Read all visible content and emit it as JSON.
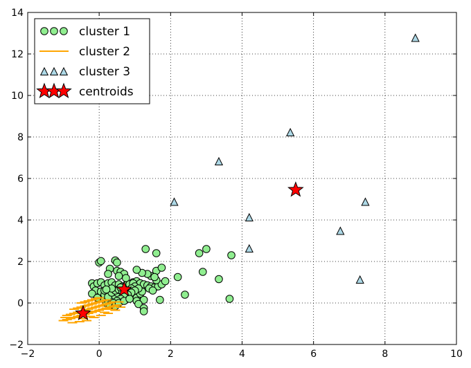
{
  "chart_data": {
    "type": "scatter",
    "title": "",
    "xlabel": "",
    "ylabel": "",
    "xlim": [
      -2,
      10
    ],
    "ylim": [
      -2,
      14
    ],
    "xticks": [
      "−2",
      "0",
      "2",
      "4",
      "6",
      "8",
      "10"
    ],
    "yticks": [
      "−2",
      "0",
      "2",
      "4",
      "6",
      "8",
      "10",
      "12",
      "14"
    ],
    "grid": true,
    "legend_position": "top-left",
    "series": [
      {
        "name": "cluster 1",
        "marker": "circle",
        "color": "#90ee90",
        "edge": "#000000",
        "points": [
          [
            0.0,
            1.95
          ],
          [
            0.05,
            2.02
          ],
          [
            0.45,
            2.05
          ],
          [
            0.5,
            1.95
          ],
          [
            0.3,
            1.65
          ],
          [
            0.5,
            1.55
          ],
          [
            0.6,
            1.5
          ],
          [
            0.7,
            1.4
          ],
          [
            0.25,
            1.4
          ],
          [
            0.55,
            1.3
          ],
          [
            0.75,
            1.2
          ],
          [
            0.95,
            1.0
          ],
          [
            1.05,
            1.05
          ],
          [
            1.15,
            0.95
          ],
          [
            1.25,
            0.9
          ],
          [
            1.35,
            0.85
          ],
          [
            1.45,
            0.8
          ],
          [
            1.55,
            0.75
          ],
          [
            1.65,
            0.8
          ],
          [
            1.75,
            0.9
          ],
          [
            1.85,
            1.05
          ],
          [
            1.6,
            1.1
          ],
          [
            1.45,
            1.3
          ],
          [
            1.35,
            1.4
          ],
          [
            1.2,
            1.45
          ],
          [
            1.05,
            1.6
          ],
          [
            1.6,
            1.55
          ],
          [
            1.75,
            1.7
          ],
          [
            1.55,
            1.25
          ],
          [
            1.3,
            2.6
          ],
          [
            1.6,
            2.4
          ],
          [
            2.2,
            1.25
          ],
          [
            2.4,
            0.4
          ],
          [
            1.7,
            0.15
          ],
          [
            2.8,
            2.4
          ],
          [
            3.0,
            2.6
          ],
          [
            3.7,
            2.3
          ],
          [
            2.9,
            1.5
          ],
          [
            3.35,
            1.15
          ],
          [
            3.65,
            0.2
          ],
          [
            -0.2,
            0.95
          ],
          [
            -0.15,
            0.8
          ],
          [
            -0.05,
            0.95
          ],
          [
            0.05,
            1.0
          ],
          [
            0.15,
            0.85
          ],
          [
            0.25,
            0.95
          ],
          [
            0.35,
            1.0
          ],
          [
            0.45,
            0.85
          ],
          [
            0.55,
            0.9
          ],
          [
            0.65,
            0.8
          ],
          [
            0.75,
            0.85
          ],
          [
            0.85,
            0.9
          ],
          [
            0.95,
            0.95
          ],
          [
            1.0,
            0.8
          ],
          [
            0.9,
            0.7
          ],
          [
            0.8,
            0.6
          ],
          [
            0.7,
            0.5
          ],
          [
            0.6,
            0.4
          ],
          [
            0.5,
            0.3
          ],
          [
            0.4,
            0.2
          ],
          [
            0.3,
            0.1
          ],
          [
            0.2,
            0.0
          ],
          [
            0.1,
            0.2
          ],
          [
            0.0,
            0.4
          ],
          [
            -0.1,
            0.6
          ],
          [
            -0.2,
            0.45
          ],
          [
            0.05,
            0.55
          ],
          [
            0.15,
            0.4
          ],
          [
            0.25,
            0.3
          ],
          [
            0.35,
            0.5
          ],
          [
            0.45,
            0.6
          ],
          [
            0.55,
            0.65
          ],
          [
            0.65,
            0.55
          ],
          [
            0.75,
            0.45
          ],
          [
            0.85,
            0.35
          ],
          [
            0.95,
            0.3
          ],
          [
            1.05,
            0.25
          ],
          [
            1.15,
            0.45
          ],
          [
            1.2,
            0.55
          ],
          [
            1.1,
            0.7
          ],
          [
            1.0,
            0.6
          ],
          [
            0.9,
            0.5
          ],
          [
            0.8,
            0.4
          ],
          [
            0.7,
            0.3
          ],
          [
            0.6,
            0.2
          ],
          [
            0.5,
            0.1
          ],
          [
            0.4,
            0.0
          ],
          [
            0.3,
            -0.1
          ],
          [
            0.45,
            -0.15
          ],
          [
            0.55,
            0.0
          ],
          [
            0.7,
            0.1
          ],
          [
            0.85,
            0.2
          ],
          [
            1.05,
            0.1
          ],
          [
            1.25,
            0.15
          ],
          [
            1.1,
            -0.05
          ],
          [
            1.25,
            -0.25
          ],
          [
            1.25,
            -0.4
          ],
          [
            1.4,
            0.7
          ],
          [
            1.5,
            0.6
          ],
          [
            0.15,
            0.6
          ],
          [
            -0.05,
            0.25
          ],
          [
            0.6,
            0.75
          ],
          [
            0.35,
            0.7
          ],
          [
            0.2,
            0.65
          ]
        ]
      },
      {
        "name": "cluster 2",
        "marker": "hline",
        "color": "#ffa500",
        "points": [
          [
            -1.0,
            -0.85
          ],
          [
            -0.9,
            -0.8
          ],
          [
            -0.8,
            -0.75
          ],
          [
            -0.7,
            -0.7
          ],
          [
            -0.6,
            -0.65
          ],
          [
            -0.5,
            -0.6
          ],
          [
            -0.4,
            -0.55
          ],
          [
            -0.3,
            -0.5
          ],
          [
            -0.2,
            -0.45
          ],
          [
            -0.1,
            -0.4
          ],
          [
            0.0,
            -0.35
          ],
          [
            0.1,
            -0.3
          ],
          [
            0.2,
            -0.25
          ],
          [
            0.3,
            -0.2
          ],
          [
            0.4,
            -0.15
          ],
          [
            0.5,
            -0.1
          ],
          [
            -0.9,
            -0.6
          ],
          [
            -0.8,
            -0.55
          ],
          [
            -0.7,
            -0.5
          ],
          [
            -0.6,
            -0.45
          ],
          [
            -0.5,
            -0.4
          ],
          [
            -0.4,
            -0.35
          ],
          [
            -0.3,
            -0.3
          ],
          [
            -0.2,
            -0.25
          ],
          [
            -0.1,
            -0.2
          ],
          [
            0.0,
            -0.15
          ],
          [
            0.1,
            -0.1
          ],
          [
            0.2,
            -0.05
          ],
          [
            0.3,
            0.0
          ],
          [
            0.4,
            0.05
          ],
          [
            -0.7,
            -0.3
          ],
          [
            -0.6,
            -0.25
          ],
          [
            -0.5,
            -0.2
          ],
          [
            -0.4,
            -0.15
          ],
          [
            -0.3,
            -0.1
          ],
          [
            -0.2,
            -0.05
          ],
          [
            -0.1,
            0.0
          ],
          [
            0.0,
            0.05
          ],
          [
            0.1,
            0.1
          ],
          [
            0.2,
            0.15
          ],
          [
            -0.5,
            0.0
          ],
          [
            -0.4,
            0.05
          ],
          [
            -0.3,
            0.1
          ],
          [
            -0.2,
            0.15
          ],
          [
            -0.1,
            0.2
          ],
          [
            0.0,
            0.25
          ],
          [
            -0.75,
            -0.95
          ],
          [
            -0.55,
            -0.9
          ],
          [
            -0.35,
            -0.85
          ],
          [
            -0.15,
            -0.7
          ],
          [
            0.05,
            -0.6
          ],
          [
            0.25,
            -0.5
          ],
          [
            0.45,
            -0.35
          ],
          [
            0.6,
            -0.2
          ],
          [
            -0.95,
            -0.7
          ],
          [
            -0.25,
            -0.65
          ],
          [
            0.15,
            -0.45
          ],
          [
            0.35,
            -0.3
          ],
          [
            -0.45,
            -0.75
          ],
          [
            0.55,
            0.05
          ]
        ]
      },
      {
        "name": "cluster 3",
        "marker": "triangle",
        "color": "#add8e6",
        "edge": "#000000",
        "points": [
          [
            8.85,
            12.75
          ],
          [
            5.35,
            8.2
          ],
          [
            3.35,
            6.8
          ],
          [
            2.1,
            4.85
          ],
          [
            4.2,
            4.1
          ],
          [
            4.2,
            2.6
          ],
          [
            6.75,
            3.45
          ],
          [
            7.45,
            4.85
          ],
          [
            7.3,
            1.1
          ]
        ]
      },
      {
        "name": "centroids",
        "marker": "star",
        "color": "#ff0000",
        "edge": "#000000",
        "points": [
          [
            5.5,
            5.45
          ],
          [
            0.7,
            0.65
          ],
          [
            -0.45,
            -0.5
          ]
        ]
      }
    ]
  }
}
